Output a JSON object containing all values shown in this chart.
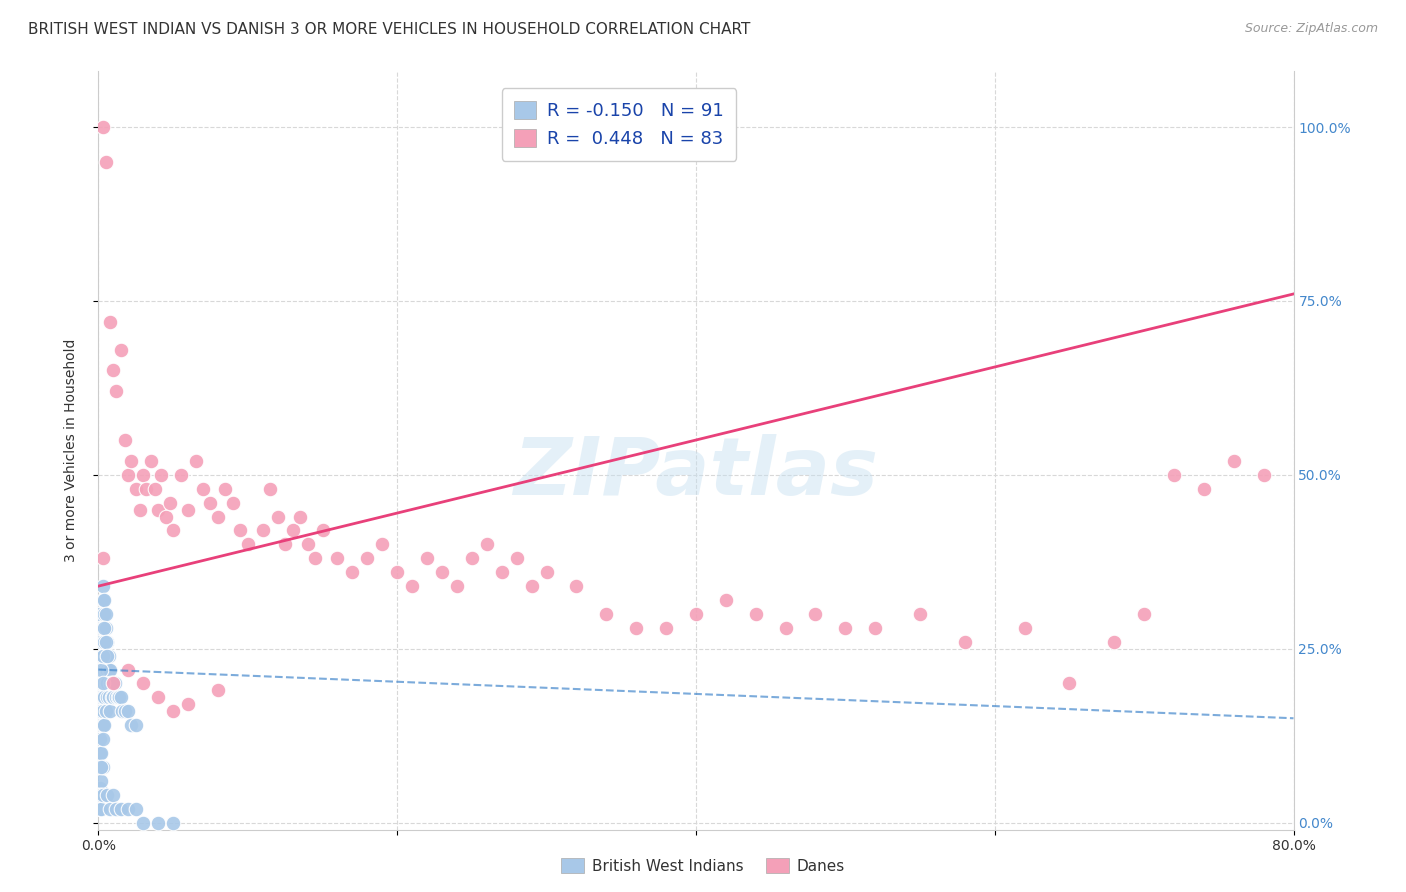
{
  "title": "BRITISH WEST INDIAN VS DANISH 3 OR MORE VEHICLES IN HOUSEHOLD CORRELATION CHART",
  "source": "Source: ZipAtlas.com",
  "ylabel": "3 or more Vehicles in Household",
  "ytick_vals": [
    0.0,
    0.25,
    0.5,
    0.75,
    1.0
  ],
  "xtick_vals": [
    0.0,
    0.2,
    0.4,
    0.6,
    0.8
  ],
  "xlim": [
    0.0,
    0.8
  ],
  "ylim": [
    -0.01,
    1.08
  ],
  "legend_labels": [
    "British West Indians",
    "Danes"
  ],
  "blue_R": -0.15,
  "blue_N": 91,
  "pink_R": 0.448,
  "pink_N": 83,
  "blue_color": "#a8c8e8",
  "pink_color": "#f4a0b8",
  "blue_line_color": "#4488cc",
  "pink_line_color": "#e8407a",
  "watermark_text": "ZIPatlas",
  "background_color": "#ffffff",
  "grid_color": "#d8d8d8",
  "title_fontsize": 11,
  "axis_label_fontsize": 10,
  "tick_fontsize": 10,
  "blue_x": [
    0.001,
    0.001,
    0.001,
    0.001,
    0.001,
    0.001,
    0.001,
    0.001,
    0.001,
    0.001,
    0.002,
    0.002,
    0.002,
    0.002,
    0.002,
    0.002,
    0.002,
    0.002,
    0.002,
    0.002,
    0.003,
    0.003,
    0.003,
    0.003,
    0.003,
    0.003,
    0.003,
    0.003,
    0.003,
    0.004,
    0.004,
    0.004,
    0.004,
    0.004,
    0.004,
    0.005,
    0.005,
    0.005,
    0.005,
    0.005,
    0.006,
    0.006,
    0.006,
    0.006,
    0.007,
    0.007,
    0.007,
    0.008,
    0.008,
    0.008,
    0.009,
    0.009,
    0.01,
    0.01,
    0.011,
    0.012,
    0.013,
    0.014,
    0.015,
    0.016,
    0.018,
    0.02,
    0.022,
    0.025,
    0.003,
    0.004,
    0.005,
    0.003,
    0.002,
    0.001,
    0.001,
    0.002,
    0.002,
    0.003,
    0.006,
    0.008,
    0.01,
    0.012,
    0.015,
    0.02,
    0.025,
    0.03,
    0.04,
    0.05,
    0.002,
    0.003,
    0.003,
    0.004,
    0.004,
    0.005,
    0.006
  ],
  "blue_y": [
    0.3,
    0.22,
    0.2,
    0.18,
    0.16,
    0.14,
    0.12,
    0.1,
    0.08,
    0.05,
    0.28,
    0.26,
    0.24,
    0.22,
    0.2,
    0.18,
    0.16,
    0.14,
    0.1,
    0.06,
    0.32,
    0.28,
    0.24,
    0.22,
    0.2,
    0.18,
    0.16,
    0.14,
    0.08,
    0.3,
    0.26,
    0.22,
    0.2,
    0.18,
    0.14,
    0.28,
    0.24,
    0.22,
    0.2,
    0.16,
    0.26,
    0.22,
    0.2,
    0.18,
    0.24,
    0.22,
    0.18,
    0.22,
    0.2,
    0.16,
    0.2,
    0.18,
    0.2,
    0.18,
    0.2,
    0.18,
    0.18,
    0.18,
    0.18,
    0.16,
    0.16,
    0.16,
    0.14,
    0.14,
    0.34,
    0.32,
    0.3,
    0.12,
    0.08,
    0.04,
    0.02,
    0.04,
    0.02,
    0.04,
    0.04,
    0.02,
    0.04,
    0.02,
    0.02,
    0.02,
    0.02,
    0.0,
    0.0,
    0.0,
    0.22,
    0.2,
    0.24,
    0.26,
    0.28,
    0.26,
    0.24
  ],
  "pink_x": [
    0.003,
    0.005,
    0.008,
    0.01,
    0.012,
    0.015,
    0.018,
    0.02,
    0.022,
    0.025,
    0.028,
    0.03,
    0.032,
    0.035,
    0.038,
    0.04,
    0.042,
    0.045,
    0.048,
    0.05,
    0.055,
    0.06,
    0.065,
    0.07,
    0.075,
    0.08,
    0.085,
    0.09,
    0.095,
    0.1,
    0.11,
    0.115,
    0.12,
    0.125,
    0.13,
    0.135,
    0.14,
    0.145,
    0.15,
    0.16,
    0.17,
    0.18,
    0.19,
    0.2,
    0.21,
    0.22,
    0.23,
    0.24,
    0.25,
    0.26,
    0.27,
    0.28,
    0.29,
    0.3,
    0.32,
    0.34,
    0.36,
    0.38,
    0.4,
    0.42,
    0.44,
    0.46,
    0.48,
    0.5,
    0.52,
    0.55,
    0.58,
    0.62,
    0.65,
    0.68,
    0.7,
    0.72,
    0.74,
    0.76,
    0.78,
    0.003,
    0.01,
    0.02,
    0.03,
    0.04,
    0.05,
    0.06,
    0.08
  ],
  "pink_y": [
    1.0,
    0.95,
    0.72,
    0.65,
    0.62,
    0.68,
    0.55,
    0.5,
    0.52,
    0.48,
    0.45,
    0.5,
    0.48,
    0.52,
    0.48,
    0.45,
    0.5,
    0.44,
    0.46,
    0.42,
    0.5,
    0.45,
    0.52,
    0.48,
    0.46,
    0.44,
    0.48,
    0.46,
    0.42,
    0.4,
    0.42,
    0.48,
    0.44,
    0.4,
    0.42,
    0.44,
    0.4,
    0.38,
    0.42,
    0.38,
    0.36,
    0.38,
    0.4,
    0.36,
    0.34,
    0.38,
    0.36,
    0.34,
    0.38,
    0.4,
    0.36,
    0.38,
    0.34,
    0.36,
    0.34,
    0.3,
    0.28,
    0.28,
    0.3,
    0.32,
    0.3,
    0.28,
    0.3,
    0.28,
    0.28,
    0.3,
    0.26,
    0.28,
    0.2,
    0.26,
    0.3,
    0.5,
    0.48,
    0.52,
    0.5,
    0.38,
    0.2,
    0.22,
    0.2,
    0.18,
    0.16,
    0.17,
    0.19
  ],
  "pink_line_start_y": 0.34,
  "pink_line_end_y": 0.76,
  "blue_line_start_y": 0.22,
  "blue_line_end_y": 0.15
}
